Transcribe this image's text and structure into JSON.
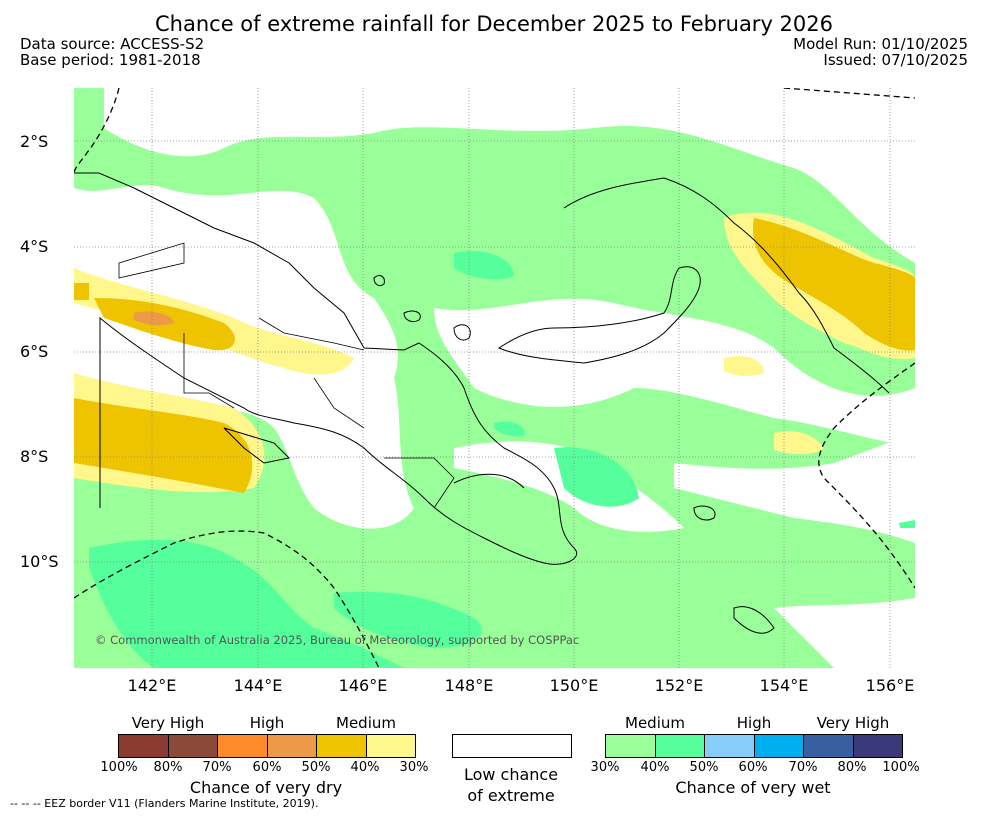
{
  "title": "Chance of extreme rainfall for December 2025 to February 2026",
  "data_source": "Data source: ACCESS-S2",
  "base_period": "Base period: 1981-2018",
  "model_run": "Model Run: 01/10/2025",
  "issued": "Issued: 07/10/2025",
  "lat_labels": [
    "2°S",
    "4°S",
    "6°S",
    "8°S",
    "10°S"
  ],
  "lon_labels": [
    "142°E",
    "144°E",
    "146°E",
    "148°E",
    "150°E",
    "152°E",
    "154°E",
    "156°E"
  ],
  "copyright": "© Commonwealth of Australia 2025, Bureau of Meteorology, supported by COSPPac",
  "dry_legend": {
    "categories": [
      "Very High",
      "High",
      "Medium"
    ],
    "colors": [
      "#8b3a30",
      "#8b4a38",
      "#ff8a2a",
      "#ec9a48",
      "#eec400",
      "#fff68c"
    ],
    "ticks": [
      "100%",
      "80%",
      "70%",
      "60%",
      "50%",
      "40%",
      "30%"
    ],
    "caption": "Chance of very dry"
  },
  "neutral_legend": {
    "caption_line1": "Low chance",
    "caption_line2": "of extreme"
  },
  "wet_legend": {
    "categories": [
      "Medium",
      "High",
      "Very High"
    ],
    "colors": [
      "#99ff99",
      "#55ff9c",
      "#87cdfa",
      "#00b0ee",
      "#3860a0",
      "#3a3a7a"
    ],
    "ticks": [
      "30%",
      "40%",
      "50%",
      "60%",
      "70%",
      "80%",
      "100%"
    ],
    "caption": "Chance of very wet"
  },
  "eez_note": "--  --  -- EEZ border V11 (Flanders Marine Institute, 2019)."
}
